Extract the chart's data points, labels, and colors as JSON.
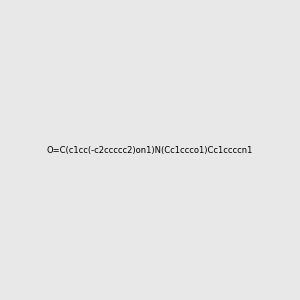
{
  "smiles": "O=C(c1cc(-c2ccccc2)on1)N(Cc1ccco1)Cc1ccccn1",
  "image_size": 300,
  "background_color": "#e8e8e8"
}
